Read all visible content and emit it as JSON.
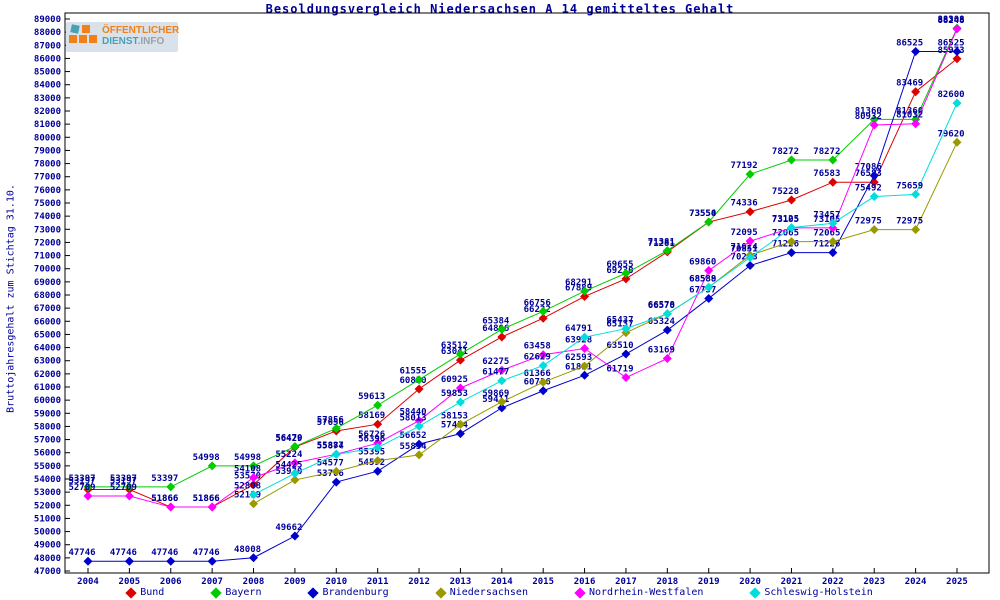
{
  "logo": {
    "line1": "ÖFFENTLICHER",
    "line2_a": "DIENST",
    "line2_b": ".INFO"
  },
  "chart_data": {
    "type": "line",
    "title": "Besoldungsvergleich Niedersachsen A 14 gemitteltes Gehalt",
    "xlabel": "",
    "ylabel": "Bruttojahresgehalt zum Stichtag 31.10.",
    "x": [
      2004,
      2005,
      2006,
      2007,
      2008,
      2009,
      2010,
      2011,
      2012,
      2013,
      2014,
      2015,
      2016,
      2017,
      2018,
      2019,
      2020,
      2021,
      2022,
      2023,
      2024,
      2025
    ],
    "ylim": [
      47000,
      89000
    ],
    "ytick_step": 1000,
    "grid": false,
    "legend_position": "bottom",
    "point_labels": true,
    "label_color": "#000099",
    "series": [
      {
        "name": "Bund",
        "color": "#dd0000",
        "values": [
          53197,
          53197,
          51866,
          51866,
          53570,
          56429,
          57656,
          58169,
          60850,
          63041,
          64806,
          66232,
          67889,
          69230,
          71281,
          73550,
          74336,
          75228,
          76583,
          76583,
          83469,
          85973
        ]
      },
      {
        "name": "Bayern",
        "color": "#00cc00",
        "values": [
          53397,
          53397,
          53397,
          54998,
          54998,
          56470,
          57856,
          59613,
          61555,
          63512,
          65384,
          66756,
          68291,
          69655,
          71381,
          73554,
          77192,
          78272,
          78272,
          81360,
          81360,
          88308
        ]
      },
      {
        "name": "Brandenburg",
        "color": "#0000cc",
        "values": [
          47746,
          47746,
          47746,
          47746,
          48008,
          49662,
          53766,
          54592,
          56652,
          57454,
          59411,
          60716,
          61891,
          63510,
          65324,
          67737,
          70243,
          71226,
          71226,
          77086,
          86525,
          86525
        ]
      },
      {
        "name": "Niedersachsen",
        "color": "#999900",
        "values": [
          null,
          null,
          null,
          null,
          52119,
          53930,
          54577,
          55395,
          55834,
          58153,
          59869,
          61366,
          62593,
          65137,
          66578,
          68588,
          71024,
          72065,
          72065,
          72975,
          72975,
          79620
        ]
      },
      {
        "name": "Nordrhein-Westfalen",
        "color": "#ff00ff",
        "values": [
          52709,
          52709,
          51866,
          51866,
          54108,
          55224,
          55887,
          56726,
          58440,
          60925,
          62275,
          63458,
          63928,
          61719,
          63169,
          69860,
          72095,
          73105,
          73105,
          80932,
          81032,
          88248
        ]
      },
      {
        "name": "Schleswig-Holstein",
        "color": "#00dddd",
        "values": [
          null,
          null,
          null,
          null,
          52808,
          54425,
          55874,
          56396,
          58013,
          59853,
          61477,
          62629,
          64791,
          65437,
          66570,
          68589,
          70851,
          73125,
          73457,
          75492,
          75659,
          82600
        ]
      }
    ]
  }
}
